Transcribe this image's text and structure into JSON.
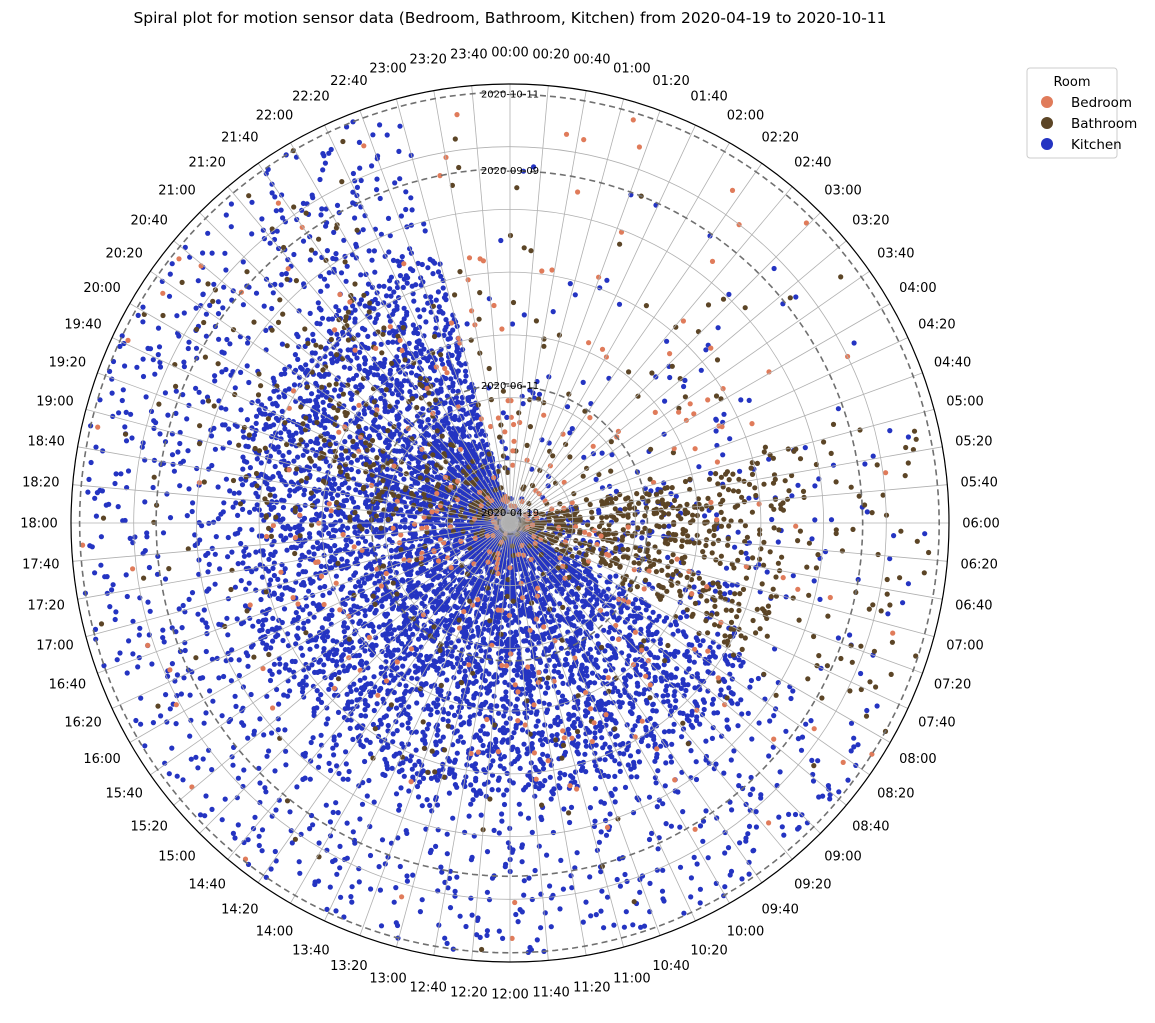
{
  "chart_data": {
    "type": "scatter",
    "projection": "polar-spiral",
    "title": "Spiral plot for motion sensor data (Bedroom, Bathroom, Kitchen) from 2020-04-19 to 2020-10-11",
    "angular_axis": {
      "unit": "time of day",
      "zero_location": "top",
      "direction": "clockwise",
      "tick_labels": [
        "00:00",
        "00:20",
        "00:40",
        "01:00",
        "01:20",
        "01:40",
        "02:00",
        "02:20",
        "02:40",
        "03:00",
        "03:20",
        "03:40",
        "04:00",
        "04:20",
        "04:40",
        "05:00",
        "05:20",
        "05:40",
        "06:00",
        "06:20",
        "06:40",
        "07:00",
        "07:20",
        "07:40",
        "08:00",
        "08:20",
        "08:40",
        "09:00",
        "09:20",
        "09:40",
        "10:00",
        "10:20",
        "10:40",
        "11:00",
        "11:20",
        "11:40",
        "12:00",
        "12:20",
        "12:40",
        "13:00",
        "13:20",
        "13:40",
        "14:00",
        "14:20",
        "14:40",
        "15:00",
        "15:20",
        "15:40",
        "16:00",
        "16:20",
        "16:40",
        "17:00",
        "17:20",
        "17:40",
        "18:00",
        "18:20",
        "18:40",
        "19:00",
        "19:20",
        "19:40",
        "20:00",
        "20:20",
        "20:40",
        "21:00",
        "21:20",
        "21:40",
        "22:00",
        "22:20",
        "22:40",
        "23:00",
        "23:20",
        "23:40"
      ]
    },
    "radial_axis": {
      "unit": "date",
      "range": [
        "2020-04-19",
        "2020-10-11"
      ],
      "date_rings": [
        {
          "label": "2020-04-19",
          "date": "2020-04-19"
        },
        {
          "label": "2020-06-11",
          "date": "2020-06-11"
        },
        {
          "label": "2020-09-09",
          "date": "2020-09-09"
        },
        {
          "label": "2020-10-11",
          "date": "2020-10-11"
        }
      ]
    },
    "grid": true,
    "legend": {
      "title": "Room",
      "placement": "outside-top-right",
      "entries": [
        {
          "name": "Bedroom",
          "color": "#e07b5a"
        },
        {
          "name": "Bathroom",
          "color": "#5c4526"
        },
        {
          "name": "Kitchen",
          "color": "#2434c2"
        }
      ]
    },
    "series": [
      {
        "name": "Kitchen",
        "color": "#2434c2",
        "activity_profile": [
          {
            "hours": [
              "00:00",
              "05:00"
            ],
            "density": "sparse"
          },
          {
            "hours": [
              "05:00",
              "08:00"
            ],
            "density": "moderate"
          },
          {
            "hours": [
              "08:00",
              "23:00"
            ],
            "density": "very dense"
          },
          {
            "hours": [
              "23:00",
              "24:00"
            ],
            "density": "sparse"
          }
        ]
      },
      {
        "name": "Bathroom",
        "color": "#5c4526",
        "activity_profile": [
          {
            "hours": [
              "00:00",
              "05:00"
            ],
            "density": "sparse"
          },
          {
            "hours": [
              "05:00",
              "08:00"
            ],
            "density": "dense"
          },
          {
            "hours": [
              "08:00",
              "18:00"
            ],
            "density": "sparse"
          },
          {
            "hours": [
              "18:00",
              "22:00"
            ],
            "density": "moderate"
          },
          {
            "hours": [
              "22:00",
              "24:00"
            ],
            "density": "sparse"
          }
        ]
      },
      {
        "name": "Bedroom",
        "color": "#e07b5a",
        "activity_profile": [
          {
            "hours": [
              "00:00",
              "07:00"
            ],
            "density": "sparse"
          },
          {
            "hours": [
              "07:00",
              "24:00"
            ],
            "density": "sparse"
          }
        ]
      }
    ]
  }
}
